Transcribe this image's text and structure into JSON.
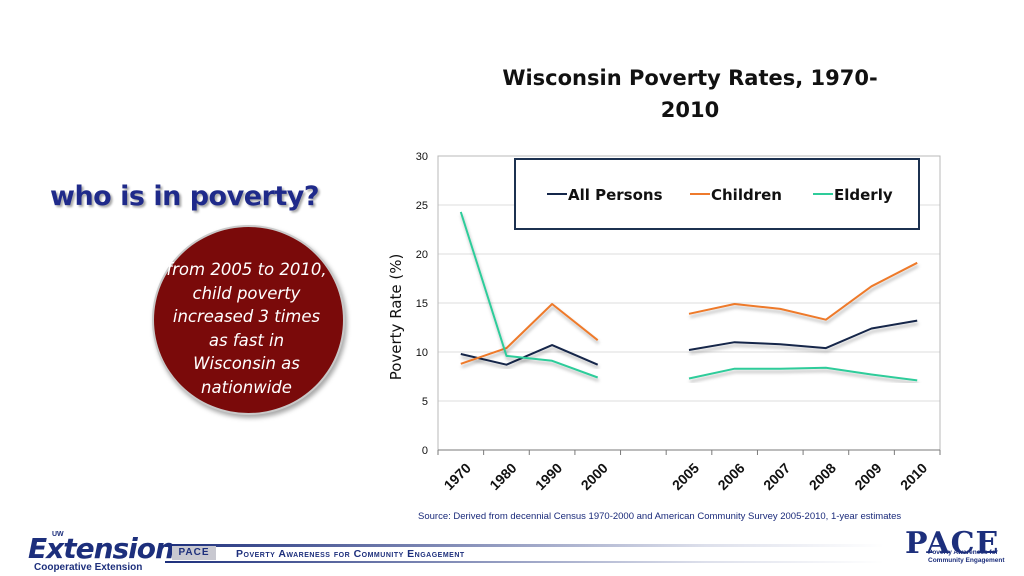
{
  "slide": {
    "heading": "who  is in poverty?",
    "callout": "from 2005 to 2010, child poverty increased 3 times as fast in Wisconsin as nationwide",
    "source": "Source: Derived from decennial Census 1970-2000 and American Community Survey 2005-2010, 1-year estimates"
  },
  "footer": {
    "extension_logo": "Extension",
    "extension_uw": "UW",
    "extension_sub": "Cooperative Extension",
    "pace_badge": "PACE",
    "tagline": "Poverty Awareness for Community Engagement",
    "pace_logo": "PACE",
    "pace_logo_sub": "Poverty Awareness for Community Engagement"
  },
  "colors": {
    "heading": "#1f2a8a",
    "callout_fill": "#7a0a0a",
    "all_persons": "#14264a",
    "children": "#ee7a2c",
    "elderly": "#2ecc9a"
  },
  "chart_data": {
    "type": "line",
    "title": "Wisconsin Poverty Rates, 1970-2010",
    "ylabel": "Poverty Rate (%)",
    "xlabel": "",
    "ylim": [
      0,
      30
    ],
    "yticks": [
      0,
      5,
      10,
      15,
      20,
      25,
      30
    ],
    "categories": [
      "1970",
      "1980",
      "1990",
      "2000",
      "",
      "2005",
      "2006",
      "2007",
      "2008",
      "2009",
      "2010"
    ],
    "grid": true,
    "legend_position": "top",
    "series": [
      {
        "name": "All Persons",
        "color": "#14264a",
        "values": [
          9.8,
          8.7,
          10.7,
          8.7,
          null,
          10.2,
          11.0,
          10.8,
          10.4,
          12.4,
          13.2
        ]
      },
      {
        "name": "Children",
        "color": "#ee7a2c",
        "values": [
          8.8,
          10.4,
          14.9,
          11.2,
          null,
          13.9,
          14.9,
          14.4,
          13.3,
          16.7,
          19.1
        ]
      },
      {
        "name": "Elderly",
        "color": "#2ecc9a",
        "values": [
          24.3,
          9.6,
          9.1,
          7.4,
          null,
          7.3,
          8.3,
          8.3,
          8.4,
          7.7,
          7.1
        ]
      }
    ]
  }
}
